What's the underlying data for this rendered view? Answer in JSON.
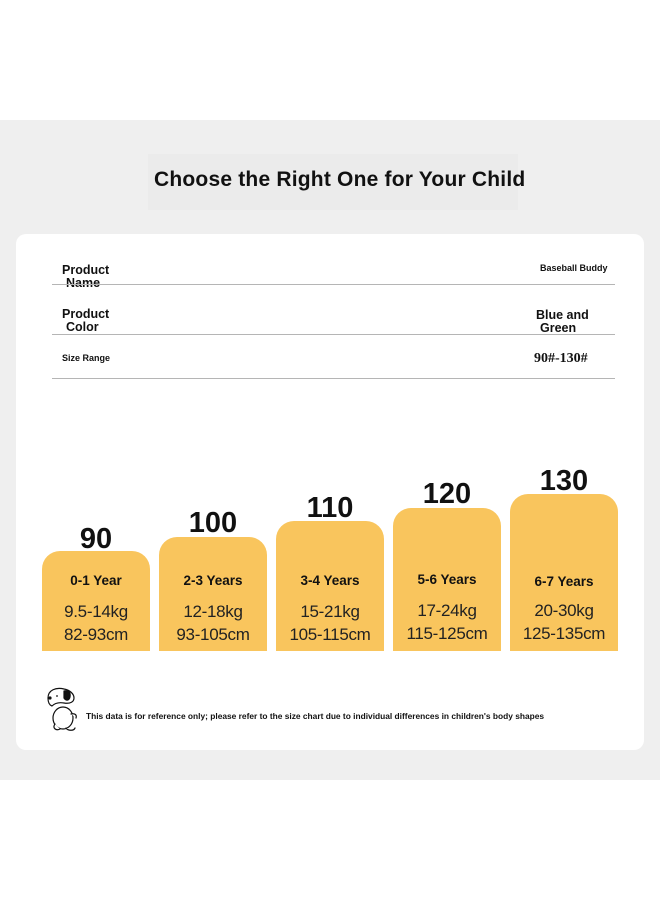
{
  "title": "Choose the Right One for Your Child",
  "product": {
    "name_label_line1": "Product",
    "name_label_line2": "Name",
    "name_value": "Baseball Buddy",
    "color_label_line1": "Product",
    "color_label_line2": "Color",
    "color_value_line1": "Blue and",
    "color_value_line2": "Green",
    "size_range_label": "Size Range",
    "size_range_value": "90#-130#"
  },
  "sizes": [
    {
      "size": "90",
      "age": "0-1 Year",
      "weight": "9.5-14kg",
      "height": "82-93cm"
    },
    {
      "size": "100",
      "age": "2-3 Years",
      "weight": "12-18kg",
      "height": "93-105cm"
    },
    {
      "size": "110",
      "age": "3-4 Years",
      "weight": "15-21kg",
      "height": "105-115cm"
    },
    {
      "size": "120",
      "age": "5-6 Years",
      "weight": "17-24kg",
      "height": "115-125cm"
    },
    {
      "size": "130",
      "age": "6-7 Years",
      "weight": "20-30kg",
      "height": "125-135cm"
    }
  ],
  "note": "This data is for reference only; please refer to the size chart due to individual differences in children's body shapes",
  "colors": {
    "accent_box": "#f9c55d",
    "band": "#efefef"
  },
  "icons": {
    "mascot": "cartoon-dog-icon"
  }
}
